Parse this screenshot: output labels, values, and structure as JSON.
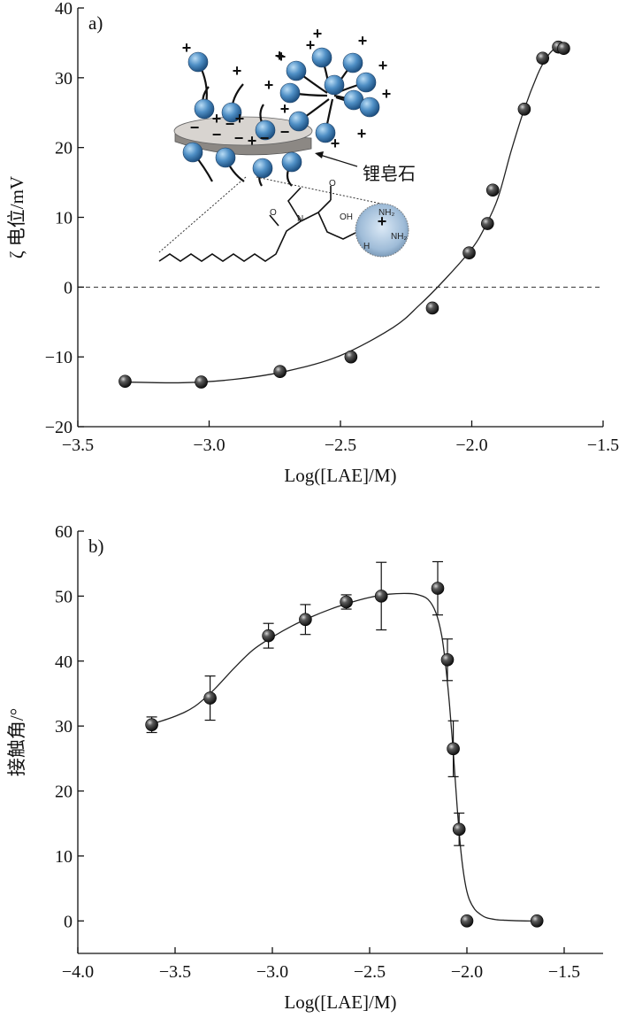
{
  "colors": {
    "axis": "#111111",
    "curve": "#222222",
    "marker_dark": "#1a1a1a",
    "marker_light": "#cfcfcf",
    "particle_light": "#a9d3f2",
    "particle_dark": "#2f6ea6",
    "clay_top": "#d8d4d0",
    "clay_side": "#8c8884"
  },
  "chart_data": [
    {
      "type": "scatter",
      "panel_label": "a)",
      "xlabel": "Log([LAE]/M)",
      "ylabel": "ζ 电位/mV",
      "xlim": [
        -3.5,
        -1.5
      ],
      "ylim": [
        -20,
        40
      ],
      "xticks": [
        -3.5,
        -3.0,
        -2.5,
        -2.0,
        -1.5
      ],
      "yticks": [
        -20,
        -10,
        0,
        10,
        20,
        30,
        40
      ],
      "xtick_labels": [
        "−3.5",
        "−3.0",
        "−2.5",
        "−2.0",
        "−1.5"
      ],
      "ytick_labels": [
        "−20",
        "−10",
        "0",
        "10",
        "20",
        "30",
        "40"
      ],
      "reference_line": {
        "y": 0,
        "style": "dashed"
      },
      "series": [
        {
          "x": [
            -3.32,
            -3.03,
            -2.73,
            -2.46,
            -2.15,
            -2.01,
            -1.94,
            -1.92,
            -1.8,
            -1.73,
            -1.67,
            -1.65
          ],
          "y": [
            -13.5,
            -13.6,
            -12.1,
            -10.0,
            -3.0,
            4.9,
            9.1,
            13.9,
            25.5,
            32.8,
            34.4,
            34.2
          ]
        }
      ],
      "fit_curve": {
        "x": [
          -3.32,
          -3.1,
          -2.9,
          -2.7,
          -2.5,
          -2.3,
          -2.2,
          -2.1,
          -2.0,
          -1.95,
          -1.9,
          -1.85,
          -1.8,
          -1.75,
          -1.72,
          -1.69,
          -1.66,
          -1.64
        ],
        "y": [
          -13.6,
          -13.7,
          -13.2,
          -12.0,
          -9.8,
          -5.8,
          -2.6,
          1.2,
          5.5,
          8.6,
          12.8,
          19.5,
          25.5,
          30.4,
          32.6,
          34.0,
          34.5,
          34.4
        ]
      },
      "inset": {
        "label": "锂皂石",
        "chem_labels": [
          "OH",
          "O",
          "N",
          "O",
          "H",
          "NH₂",
          "NH₂"
        ]
      }
    },
    {
      "type": "scatter",
      "panel_label": "b)",
      "xlabel": "Log([LAE]/M)",
      "ylabel": "接触角/°",
      "xlim": [
        -4.0,
        -1.3
      ],
      "ylim": [
        -5,
        60
      ],
      "xticks": [
        -4.0,
        -3.5,
        -3.0,
        -2.5,
        -2.0,
        -1.5
      ],
      "yticks": [
        0,
        10,
        20,
        30,
        40,
        50,
        60
      ],
      "xtick_labels": [
        "−4.0",
        "−3.5",
        "−3.0",
        "−2.5",
        "−2.0",
        "−1.5"
      ],
      "ytick_labels": [
        "0",
        "10",
        "20",
        "30",
        "40",
        "50",
        "60"
      ],
      "series": [
        {
          "x": [
            -3.62,
            -3.32,
            -3.02,
            -2.83,
            -2.62,
            -2.44,
            -2.15,
            -2.1,
            -2.07,
            -2.04,
            -2.0,
            -1.64
          ],
          "y": [
            30.2,
            34.3,
            43.9,
            46.4,
            49.1,
            50.0,
            51.2,
            40.2,
            26.5,
            14.1,
            0.0,
            0.0
          ],
          "error": [
            1.2,
            3.4,
            1.9,
            2.3,
            1.1,
            5.2,
            4.1,
            3.2,
            4.3,
            2.5,
            0,
            0
          ]
        }
      ],
      "fit_curve": {
        "x": [
          -3.62,
          -3.5,
          -3.4,
          -3.3,
          -3.2,
          -3.1,
          -3.0,
          -2.9,
          -2.8,
          -2.7,
          -2.6,
          -2.5,
          -2.4,
          -2.3,
          -2.25,
          -2.2,
          -2.16,
          -2.13,
          -2.11,
          -2.09,
          -2.07,
          -2.05,
          -2.03,
          -2.01,
          -1.99,
          -1.96,
          -1.93,
          -1.9,
          -1.85,
          -1.8,
          -1.7,
          -1.64
        ],
        "y": [
          30.3,
          31.5,
          33.0,
          35.6,
          38.8,
          41.7,
          43.7,
          45.4,
          46.8,
          48.0,
          49.0,
          49.8,
          50.3,
          50.4,
          50.2,
          49.5,
          47.5,
          44.0,
          39.5,
          33.5,
          26.0,
          17.5,
          10.5,
          6.0,
          3.5,
          1.8,
          1.0,
          0.5,
          0.2,
          0.1,
          0.0,
          0.0
        ]
      }
    }
  ]
}
